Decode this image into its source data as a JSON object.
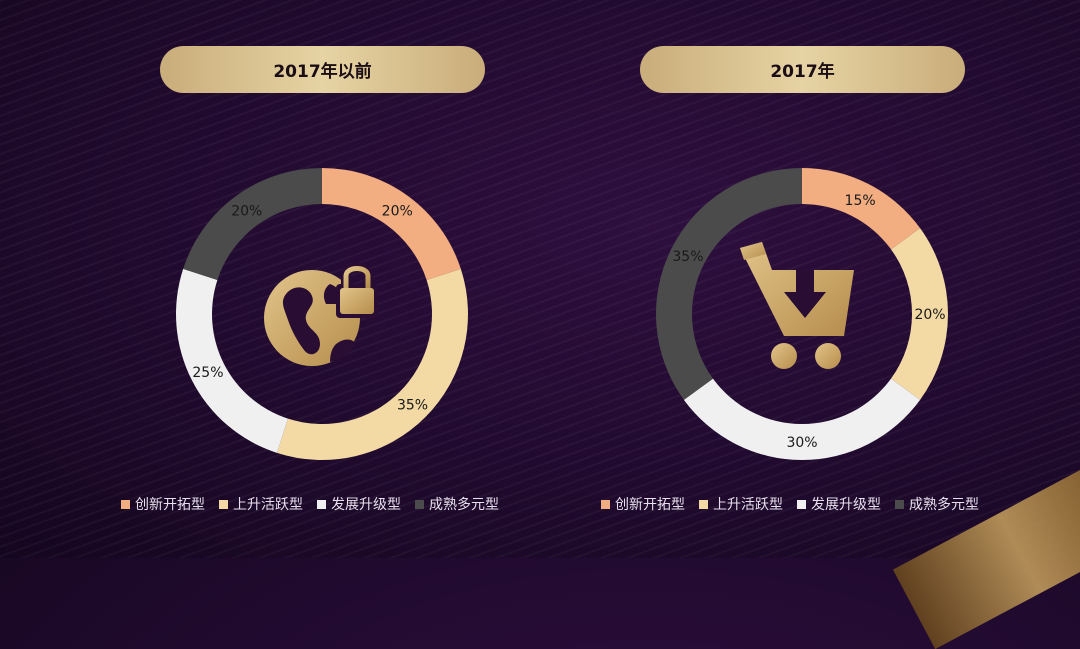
{
  "colors": {
    "series": [
      "#f2ad80",
      "#f3d9a3",
      "#f0f0f0",
      "#4b4b4b"
    ],
    "icon": "#cfae6c"
  },
  "legend": [
    "创新开拓型",
    "上升活跃型",
    "发展升级型",
    "成熟多元型"
  ],
  "icons": {
    "left": "globe-lock-icon",
    "right": "shopping-cart-download-icon"
  },
  "chart_data": [
    {
      "type": "pie",
      "title": "2017年以前",
      "categories": [
        "创新开拓型",
        "上升活跃型",
        "发展升级型",
        "成熟多元型"
      ],
      "values": [
        20,
        35,
        25,
        20
      ],
      "labels": [
        "20%",
        "35%",
        "25%",
        "20%"
      ],
      "legend_position": "bottom"
    },
    {
      "type": "pie",
      "title": "2017年",
      "categories": [
        "创新开拓型",
        "上升活跃型",
        "发展升级型",
        "成熟多元型"
      ],
      "values": [
        15,
        20,
        30,
        35
      ],
      "labels": [
        "15%",
        "20%",
        "30%",
        "35%"
      ],
      "legend_position": "bottom"
    }
  ]
}
